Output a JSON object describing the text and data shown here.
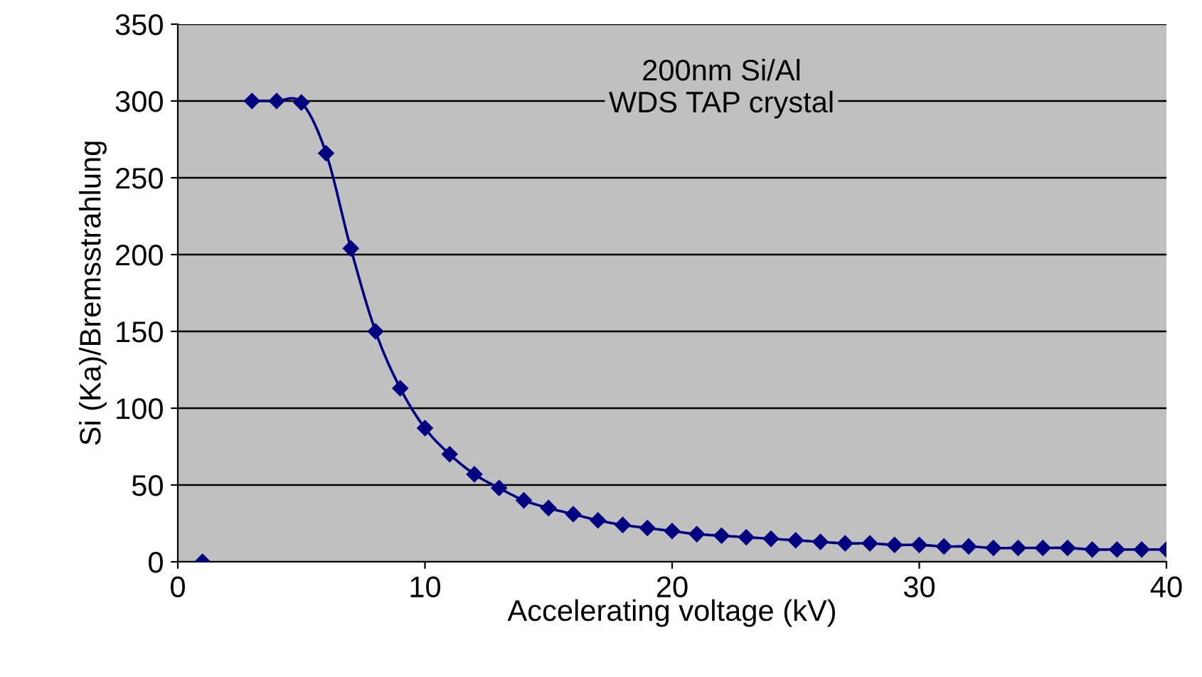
{
  "chart_data": {
    "type": "line",
    "xlabel": "Accelerating voltage (kV)",
    "ylabel": "Si (Ka)/Bremsstrahlung",
    "annotations": [
      "200nm Si/Al\nWDS TAP crystal"
    ],
    "x": [
      1,
      2,
      3,
      4,
      5,
      6,
      7,
      8,
      9,
      10,
      11,
      12,
      13,
      14,
      15,
      16,
      17,
      18,
      19,
      20,
      21,
      22,
      23,
      24,
      25,
      26,
      27,
      28,
      29,
      30,
      31,
      32,
      33,
      34,
      35,
      36,
      37,
      38,
      39,
      40
    ],
    "series": [
      {
        "color": "#000080",
        "values": [
          0,
          null,
          300,
          300,
          299,
          266,
          204,
          150,
          113,
          87,
          70,
          57,
          48,
          40,
          35,
          31,
          27,
          24,
          22,
          20,
          18,
          17,
          16,
          15,
          14,
          13,
          12,
          12,
          11,
          11,
          10,
          10,
          9,
          9,
          9,
          9,
          8,
          8,
          8,
          8
        ]
      }
    ],
    "xlim": [
      0,
      40
    ],
    "xticks": [
      0,
      10,
      20,
      30,
      40
    ],
    "ylim": [
      0,
      350
    ],
    "yticks": [
      0,
      50,
      100,
      150,
      200,
      250,
      300,
      350
    ],
    "grid": "y",
    "marker": "diamond",
    "line_style": "solid",
    "legend": false
  }
}
